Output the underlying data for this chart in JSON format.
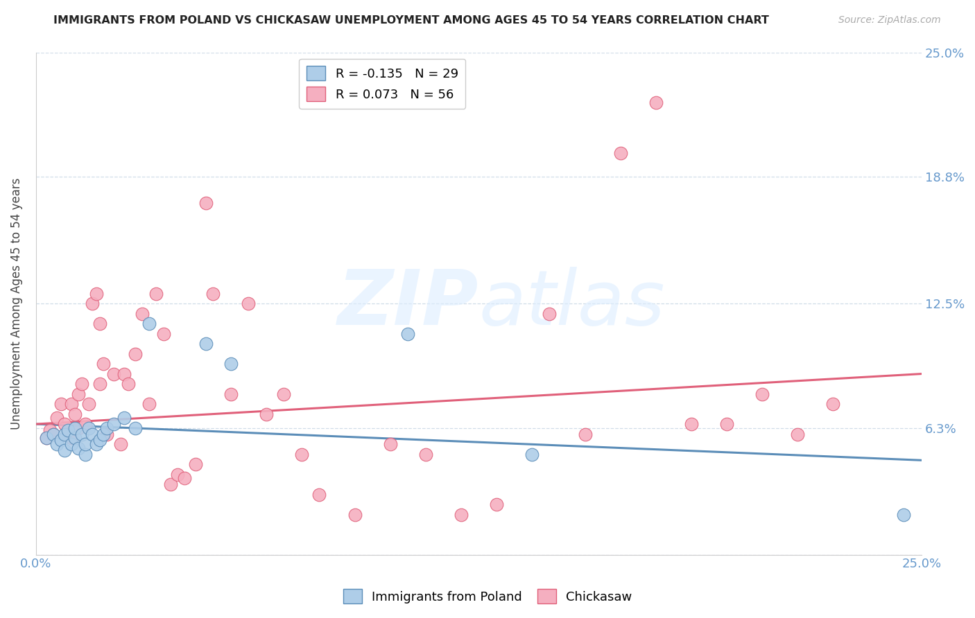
{
  "title": "IMMIGRANTS FROM POLAND VS CHICKASAW UNEMPLOYMENT AMONG AGES 45 TO 54 YEARS CORRELATION CHART",
  "source": "Source: ZipAtlas.com",
  "ylabel": "Unemployment Among Ages 45 to 54 years",
  "xlim": [
    0.0,
    0.25
  ],
  "ylim": [
    0.0,
    0.25
  ],
  "yticks": [
    0.0,
    0.063,
    0.125,
    0.188,
    0.25
  ],
  "ytick_labels": [
    "",
    "6.3%",
    "12.5%",
    "18.8%",
    "25.0%"
  ],
  "xticks": [
    0.0,
    0.0625,
    0.125,
    0.1875,
    0.25
  ],
  "xtick_labels": [
    "0.0%",
    "",
    "",
    "",
    "25.0%"
  ],
  "legend_R1": "-0.135",
  "legend_N1": "29",
  "legend_R2": "0.073",
  "legend_N2": "56",
  "poland_color": "#aecde8",
  "chickasaw_color": "#f5afc0",
  "poland_line_color": "#5b8db8",
  "chickasaw_line_color": "#e0607a",
  "poland_scatter_x": [
    0.003,
    0.005,
    0.006,
    0.007,
    0.008,
    0.008,
    0.009,
    0.01,
    0.011,
    0.011,
    0.012,
    0.013,
    0.014,
    0.014,
    0.015,
    0.016,
    0.017,
    0.018,
    0.019,
    0.02,
    0.022,
    0.025,
    0.028,
    0.032,
    0.048,
    0.055,
    0.105,
    0.14,
    0.245
  ],
  "poland_scatter_y": [
    0.058,
    0.06,
    0.055,
    0.057,
    0.06,
    0.052,
    0.062,
    0.055,
    0.058,
    0.063,
    0.053,
    0.06,
    0.05,
    0.055,
    0.063,
    0.06,
    0.055,
    0.057,
    0.06,
    0.063,
    0.065,
    0.068,
    0.063,
    0.115,
    0.105,
    0.095,
    0.11,
    0.05,
    0.02
  ],
  "chickasaw_scatter_x": [
    0.003,
    0.004,
    0.005,
    0.006,
    0.007,
    0.008,
    0.009,
    0.01,
    0.01,
    0.011,
    0.012,
    0.012,
    0.013,
    0.014,
    0.015,
    0.016,
    0.017,
    0.018,
    0.018,
    0.019,
    0.02,
    0.022,
    0.024,
    0.025,
    0.026,
    0.028,
    0.03,
    0.032,
    0.034,
    0.036,
    0.038,
    0.04,
    0.042,
    0.045,
    0.048,
    0.05,
    0.055,
    0.06,
    0.065,
    0.07,
    0.075,
    0.08,
    0.09,
    0.1,
    0.11,
    0.12,
    0.13,
    0.145,
    0.155,
    0.165,
    0.175,
    0.185,
    0.195,
    0.205,
    0.215,
    0.225
  ],
  "chickasaw_scatter_y": [
    0.058,
    0.062,
    0.06,
    0.068,
    0.075,
    0.065,
    0.06,
    0.075,
    0.058,
    0.07,
    0.08,
    0.063,
    0.085,
    0.065,
    0.075,
    0.125,
    0.13,
    0.085,
    0.115,
    0.095,
    0.06,
    0.09,
    0.055,
    0.09,
    0.085,
    0.1,
    0.12,
    0.075,
    0.13,
    0.11,
    0.035,
    0.04,
    0.038,
    0.045,
    0.175,
    0.13,
    0.08,
    0.125,
    0.07,
    0.08,
    0.05,
    0.03,
    0.02,
    0.055,
    0.05,
    0.02,
    0.025,
    0.12,
    0.06,
    0.2,
    0.225,
    0.065,
    0.065,
    0.08,
    0.06,
    0.075
  ],
  "trend_poland_y0": 0.065,
  "trend_poland_y1": 0.047,
  "trend_chickasaw_y0": 0.065,
  "trend_chickasaw_y1": 0.09,
  "background_color": "#ffffff",
  "grid_color": "#d0dde8",
  "text_color_title": "#222222",
  "text_color_axis": "#6699cc",
  "text_color_source": "#aaaaaa",
  "watermark_text": "ZIPatlas",
  "watermark_color": "#ddeeff"
}
